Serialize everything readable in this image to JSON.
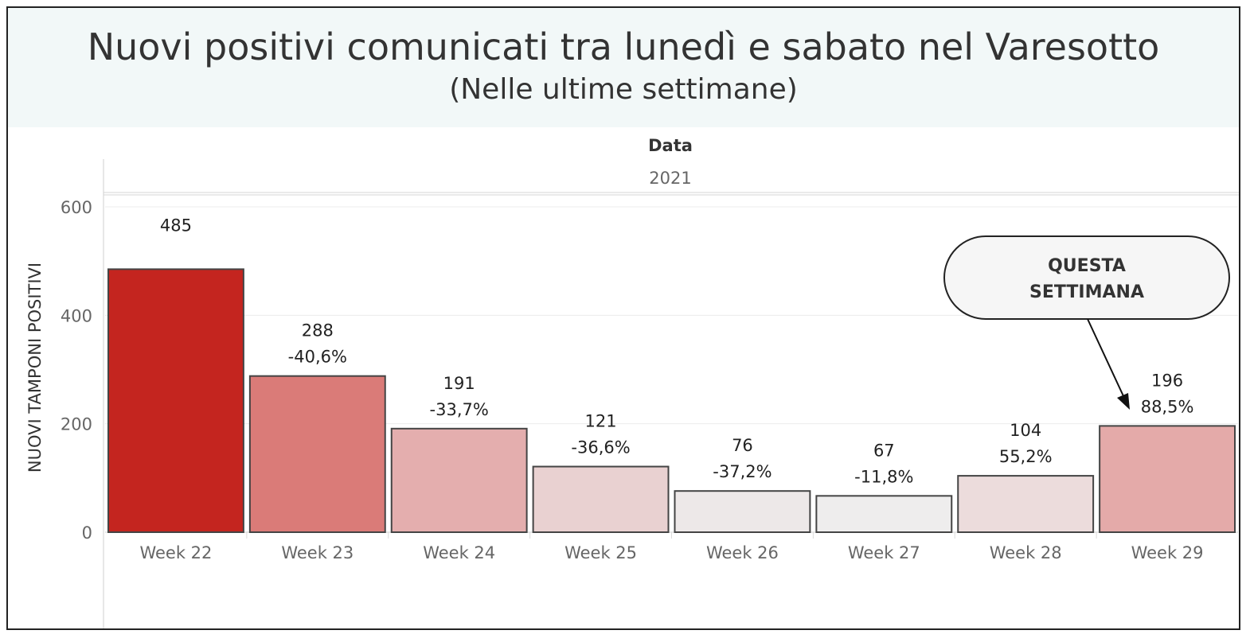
{
  "header": {
    "title": "Nuovi positivi comunicati tra lunedì e sabato nel Varesotto",
    "subtitle": "(Nelle ultime settimane)"
  },
  "column_header": {
    "field": "Data",
    "year": "2021"
  },
  "annotation": {
    "text_line1": "QUESTA",
    "text_line2": "SETTIMANA",
    "target": "Week 29"
  },
  "chart_data": {
    "type": "bar",
    "title": "Nuovi positivi comunicati tra lunedì e sabato nel Varesotto",
    "subtitle": "(Nelle ultime settimane)",
    "ylabel": "NUOVI TAMPONI POSITIVI",
    "xlabel": "",
    "ylim": [
      0,
      600
    ],
    "yticks": [
      "0",
      "200",
      "400",
      "600"
    ],
    "grid": true,
    "categories": [
      "Week 22",
      "Week 23",
      "Week 24",
      "Week 25",
      "Week 26",
      "Week 27",
      "Week 28",
      "Week 29"
    ],
    "values": [
      485,
      288,
      191,
      121,
      76,
      67,
      104,
      196
    ],
    "value_labels": [
      "485",
      "288",
      "191",
      "121",
      "76",
      "67",
      "104",
      "196"
    ],
    "change_labels": [
      "",
      "-40,6%",
      "-33,7%",
      "-36,6%",
      "-37,2%",
      "-11,8%",
      "55,2%",
      "88,5%"
    ],
    "colors": [
      "#c4251f",
      "#da7b78",
      "#e4aeae",
      "#e9d1d1",
      "#ede8e8",
      "#eeeded",
      "#ecdcdc",
      "#e4aaa9"
    ],
    "bar_edge_color": "#444444"
  }
}
